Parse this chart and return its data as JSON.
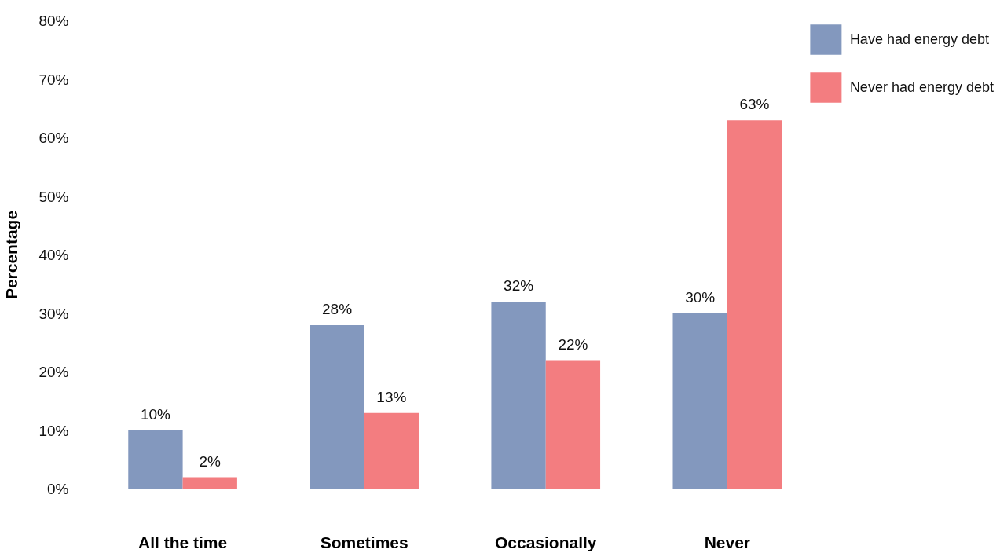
{
  "chart_data": {
    "type": "bar",
    "ylabel": "Percentage",
    "categories": [
      "All the time",
      "Sometimes",
      "Occasionally",
      "Never"
    ],
    "series": [
      {
        "name": "Have had energy debt",
        "color": "#8398be",
        "values": [
          10,
          28,
          32,
          30
        ],
        "value_labels": [
          "10%",
          "28%",
          "32%",
          "30%"
        ]
      },
      {
        "name": "Never had energy debt",
        "color": "#f37d80",
        "values": [
          2,
          13,
          22,
          63
        ],
        "value_labels": [
          "2%",
          "13%",
          "22%",
          "63%"
        ]
      }
    ],
    "ylim": [
      0,
      80
    ],
    "yticks": [
      {
        "value": 0,
        "label": "0%"
      },
      {
        "value": 10,
        "label": "10%"
      },
      {
        "value": 20,
        "label": "20%"
      },
      {
        "value": 30,
        "label": "30%"
      },
      {
        "value": 40,
        "label": "40%"
      },
      {
        "value": 50,
        "label": "50%"
      },
      {
        "value": 60,
        "label": "60%"
      },
      {
        "value": 70,
        "label": "70%"
      },
      {
        "value": 80,
        "label": "80%"
      }
    ],
    "legend": "top right"
  }
}
